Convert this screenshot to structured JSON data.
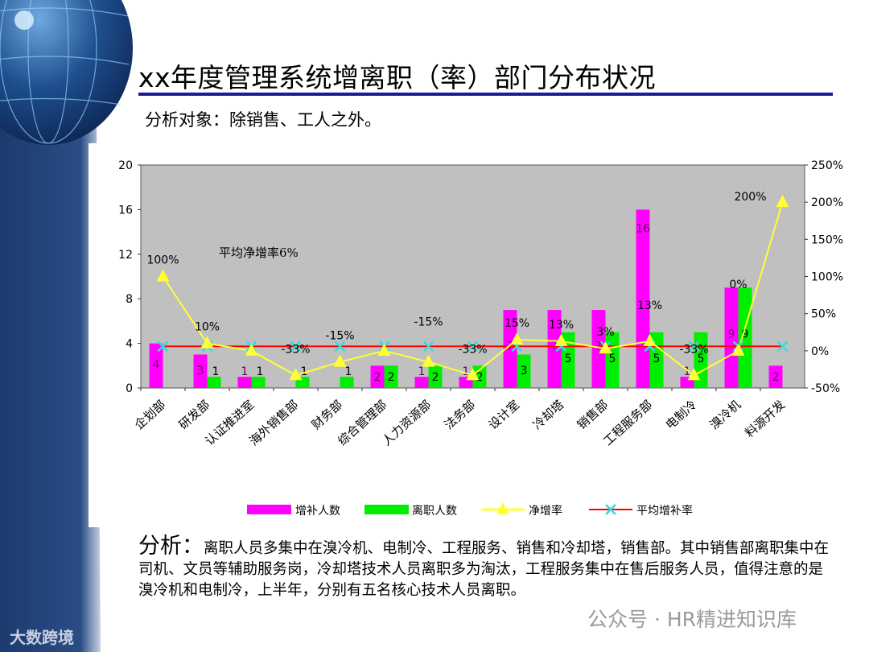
{
  "title": "xx年度管理系统增离职（率）部门分布状况",
  "subtitle": "分析对象：除销售、工人之外。",
  "analysis": {
    "lead": "分析：",
    "text": "离职人员多集中在溴冷机、电制冷、工程服务、销售和冷却塔，销售部。其中销售部离职集中在司机、文员等辅助服务岗，冷却塔技术人员离职多为淘汰，工程服务集中在售后服务人员，值得注意的是溴冷机和电制冷，上半年，分别有五名核心技术人员离职。"
  },
  "watermarks": {
    "wechat": "公众号 · HR精进知识库",
    "brand": "大数跨境"
  },
  "colors": {
    "plot_bg": "#c0c0c0",
    "hires": "#ff00ff",
    "leavers": "#00ee00",
    "net_rate": "#ffff33",
    "avg_line": "#ff0000",
    "avg_marker": "#33dddd",
    "title_rule": "#1a1a9a",
    "band": "#1c3a6e"
  },
  "chart_data": {
    "type": "bar+line",
    "categories": [
      "企划部",
      "研发部",
      "认证推进室",
      "海外销售部",
      "财务部",
      "综合管理部",
      "人力资源部",
      "法务部",
      "设计室",
      "冷却塔",
      "销售部",
      "工程服务部",
      "电制冷",
      "溴冷机",
      "料源开发"
    ],
    "series": [
      {
        "name": "增补人数",
        "type": "bar",
        "axis": "left",
        "values": [
          4,
          3,
          1,
          0,
          0,
          2,
          1,
          1,
          7,
          7,
          7,
          16,
          1,
          9,
          2
        ],
        "labels": [
          "4",
          "3",
          "1",
          "",
          "",
          "2",
          "1",
          "1",
          "7",
          "7",
          "7",
          "16",
          "1",
          "9",
          "2"
        ]
      },
      {
        "name": "离职人数",
        "type": "bar",
        "axis": "left",
        "values": [
          0,
          1,
          1,
          1,
          1,
          2,
          2,
          2,
          3,
          5,
          5,
          5,
          5,
          9,
          0
        ],
        "labels": [
          "",
          "1",
          "1",
          "1",
          "1",
          "2",
          "2",
          "2",
          "3",
          "5",
          "5",
          "5",
          "5",
          "9",
          ""
        ]
      },
      {
        "name": "净增率",
        "type": "line",
        "axis": "right",
        "marker": "triangle",
        "values": [
          100,
          10,
          0,
          -33,
          -15,
          0,
          -15,
          -33,
          15,
          13,
          3,
          13,
          -33,
          0,
          200
        ],
        "labels": [
          "100%",
          "10%",
          "",
          "-33%",
          "-15%",
          "",
          "-15%",
          "-33%",
          "15%",
          "13%",
          "3%",
          "13%",
          "-33%",
          "0%",
          "200%"
        ]
      },
      {
        "name": "平均增补率",
        "type": "line",
        "axis": "right",
        "marker": "x",
        "values": [
          6,
          6,
          6,
          6,
          6,
          6,
          6,
          6,
          6,
          6,
          6,
          6,
          6,
          6,
          6
        ]
      }
    ],
    "annotation": "平均净增率6%",
    "y_left": {
      "range": [
        0,
        20
      ],
      "ticks": [
        "0",
        "4",
        "8",
        "12",
        "16",
        "20"
      ]
    },
    "y_right": {
      "range": [
        -50,
        250
      ],
      "unit": "%",
      "ticks": [
        "-50%",
        "0%",
        "50%",
        "100%",
        "150%",
        "200%",
        "250%"
      ]
    },
    "legend_position": "bottom",
    "grid": false
  }
}
